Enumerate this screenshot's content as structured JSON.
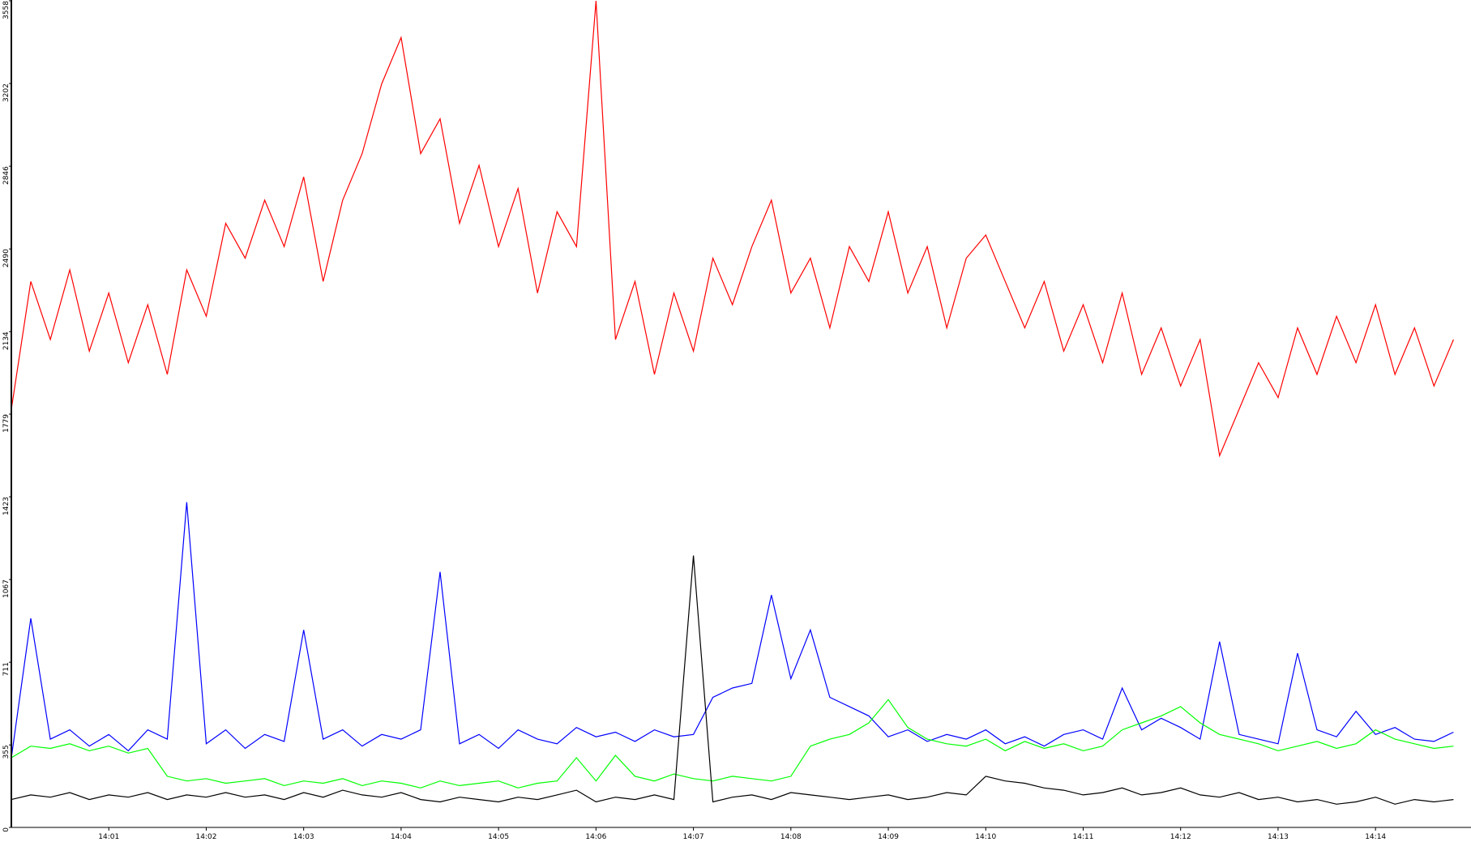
{
  "chart_data": {
    "type": "line",
    "xlim": [
      0,
      14.98
    ],
    "xticks": [
      {
        "value": 1,
        "label": "14:01"
      },
      {
        "value": 2,
        "label": "14:02"
      },
      {
        "value": 3,
        "label": "14:03"
      },
      {
        "value": 4,
        "label": "14:04"
      },
      {
        "value": 5,
        "label": "14:05"
      },
      {
        "value": 6,
        "label": "14:06"
      },
      {
        "value": 7,
        "label": "14:07"
      },
      {
        "value": 8,
        "label": "14:08"
      },
      {
        "value": 9,
        "label": "14:09"
      },
      {
        "value": 10,
        "label": "14:10"
      },
      {
        "value": 11,
        "label": "14:11"
      },
      {
        "value": 12,
        "label": "14:12"
      },
      {
        "value": 13,
        "label": "14:13"
      },
      {
        "value": 14,
        "label": "14:14"
      }
    ],
    "ylim": [
      0,
      3558
    ],
    "yticks": [
      0,
      355,
      711,
      1067,
      1423,
      1779,
      2134,
      2490,
      2846,
      3202,
      3558
    ],
    "x": [
      0,
      0.2,
      0.4,
      0.6,
      0.8,
      1,
      1.2,
      1.4,
      1.6,
      1.8,
      2,
      2.2,
      2.4,
      2.6,
      2.8,
      3,
      3.2,
      3.4,
      3.6,
      3.8,
      4,
      4.2,
      4.4,
      4.6,
      4.8,
      5,
      5.2,
      5.4,
      5.6,
      5.8,
      6,
      6.2,
      6.4,
      6.6,
      6.8,
      7,
      7.2,
      7.4,
      7.6,
      7.8,
      8,
      8.2,
      8.4,
      8.6,
      8.8,
      9,
      9.2,
      9.4,
      9.6,
      9.8,
      10,
      10.2,
      10.4,
      10.6,
      10.8,
      11,
      11.2,
      11.4,
      11.6,
      11.8,
      12,
      12.2,
      12.4,
      12.6,
      12.8,
      13,
      13.2,
      13.4,
      13.6,
      13.8,
      14,
      14.2,
      14.4,
      14.6,
      14.8
    ],
    "series": [
      {
        "color": "#ff0000",
        "values": [
          1800,
          2350,
          2100,
          2400,
          2050,
          2300,
          2000,
          2250,
          1950,
          2400,
          2200,
          2600,
          2450,
          2700,
          2500,
          2800,
          2350,
          2700,
          2900,
          3200,
          3400,
          2900,
          3050,
          2600,
          2850,
          2500,
          2750,
          2300,
          2650,
          2500,
          3558,
          2100,
          2350,
          1950,
          2300,
          2050,
          2450,
          2250,
          2500,
          2700,
          2300,
          2450,
          2150,
          2500,
          2350,
          2650,
          2300,
          2500,
          2150,
          2450,
          2550,
          2350,
          2150,
          2350,
          2050,
          2250,
          2000,
          2300,
          1950,
          2150,
          1900,
          2100,
          1600,
          1800,
          2000,
          1850,
          2150,
          1950,
          2200,
          2000,
          2250,
          1950,
          2150,
          1900,
          2100
        ]
      },
      {
        "color": "#0000ff",
        "values": [
          300,
          900,
          380,
          420,
          350,
          400,
          330,
          420,
          380,
          1400,
          360,
          420,
          340,
          400,
          370,
          850,
          380,
          420,
          350,
          400,
          380,
          420,
          1100,
          360,
          400,
          340,
          420,
          380,
          360,
          430,
          390,
          410,
          370,
          420,
          390,
          400,
          560,
          600,
          620,
          1000,
          640,
          850,
          560,
          520,
          480,
          390,
          420,
          370,
          400,
          380,
          420,
          360,
          390,
          350,
          400,
          420,
          380,
          600,
          420,
          470,
          430,
          380,
          800,
          400,
          380,
          360,
          750,
          420,
          390,
          500,
          400,
          430,
          380,
          370,
          410
        ]
      },
      {
        "color": "#00ff00",
        "values": [
          300,
          350,
          340,
          360,
          330,
          350,
          320,
          340,
          220,
          200,
          210,
          190,
          200,
          210,
          180,
          200,
          190,
          210,
          180,
          200,
          190,
          170,
          200,
          180,
          190,
          200,
          170,
          190,
          200,
          300,
          200,
          310,
          220,
          200,
          230,
          210,
          200,
          220,
          210,
          200,
          220,
          350,
          380,
          400,
          450,
          550,
          430,
          380,
          360,
          350,
          380,
          330,
          370,
          340,
          360,
          330,
          350,
          420,
          450,
          480,
          520,
          450,
          400,
          380,
          360,
          330,
          350,
          370,
          340,
          360,
          420,
          380,
          360,
          340,
          350
        ]
      },
      {
        "color": "#000000",
        "values": [
          120,
          140,
          130,
          150,
          120,
          140,
          130,
          150,
          120,
          140,
          130,
          150,
          130,
          140,
          120,
          150,
          130,
          160,
          140,
          130,
          150,
          120,
          110,
          130,
          120,
          110,
          130,
          120,
          140,
          160,
          110,
          130,
          120,
          140,
          120,
          1170,
          110,
          130,
          140,
          120,
          150,
          140,
          130,
          120,
          130,
          140,
          120,
          130,
          150,
          140,
          220,
          200,
          190,
          170,
          160,
          140,
          150,
          170,
          140,
          150,
          170,
          140,
          130,
          150,
          120,
          130,
          110,
          120,
          100,
          110,
          130,
          100,
          120,
          110,
          120
        ]
      }
    ]
  }
}
